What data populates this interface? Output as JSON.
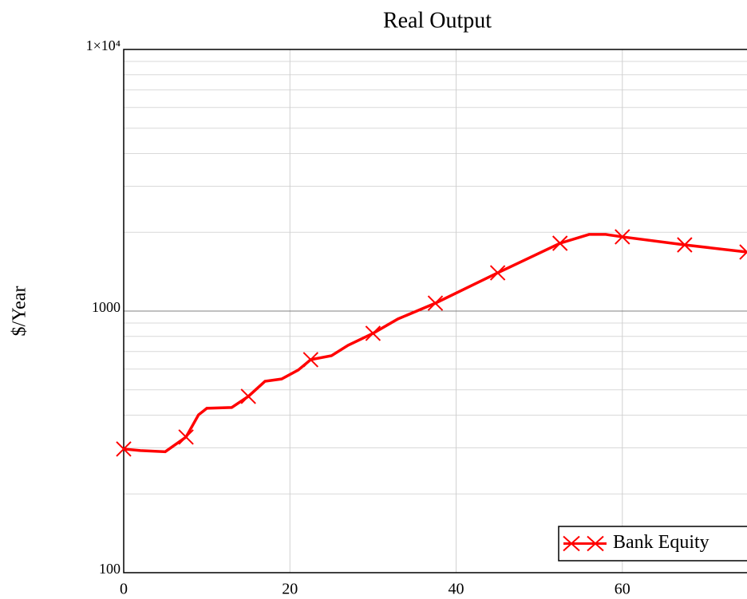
{
  "chart_data": {
    "type": "line",
    "title": "Real Output",
    "ylabel": "$/Year",
    "x": [
      0,
      2,
      5,
      7.5,
      9,
      10,
      13,
      15,
      17,
      19,
      21,
      22.5,
      25,
      27,
      30,
      33,
      37.5,
      45,
      52.5,
      56,
      58,
      60,
      67.5,
      75
    ],
    "series": [
      {
        "name": "Bank Equity",
        "color": "#ff0000",
        "values": [
          297,
          293,
          290,
          330,
          401,
          425,
          428,
          472,
          539,
          550,
          595,
          652,
          675,
          740,
          822,
          933,
          1072,
          1400,
          1816,
          1963,
          1963,
          1922,
          1791,
          1681
        ]
      }
    ],
    "xlim": [
      0,
      75
    ],
    "xticks": [
      0,
      20,
      40,
      60
    ],
    "ylim": [
      100,
      10000
    ],
    "yticks": [
      100,
      1000,
      {
        "value": 10000,
        "label": "1×10⁴"
      }
    ],
    "log_y": true,
    "grid": true,
    "minor_grid": true,
    "legend": "lower right"
  }
}
